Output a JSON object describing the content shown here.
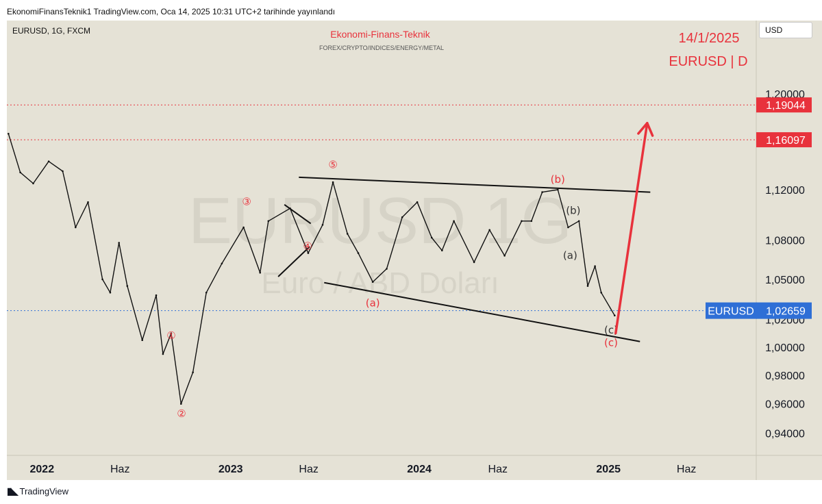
{
  "header": {
    "publish_line": "EkonomiFinansTeknik1 TradingView.com, Oca 14, 2025 10:31 UTC+2 tarihinde yayınlandı"
  },
  "chart_info": {
    "symbol_line": "EURUSD, 1G, FXCM",
    "brand_title": "Ekonomi-Finans-Teknik",
    "brand_subtitle": "FOREX/CRYPTO/INDICES/ENERGY/METAL",
    "watermark_symbol": "EURUSD 1G",
    "watermark_name": "Euro / ABD Doları",
    "date_note": "14/1/2025",
    "pair_note": "EURUSD | D",
    "currency_button": "USD"
  },
  "colors": {
    "background": "#e5e2d6",
    "candles": "#111111",
    "accent_red": "#e8323c",
    "last_price_blue": "#2f6fd6",
    "trendline": "#111111",
    "grid_axis_bg": "#e5e2d6"
  },
  "footer": {
    "logo_icon": "tradingview-logo-icon",
    "logo_text": "TradingView"
  },
  "chart_data": {
    "type": "line",
    "title": "",
    "subtitle": "",
    "symbol": "EURUSD",
    "interval": "1G",
    "x_tick_labels": [
      "2022",
      "Haz",
      "2023",
      "Haz",
      "2024",
      "Haz",
      "2025",
      "Haz"
    ],
    "y_tick_labels": [
      "1,20000",
      "1,12000",
      "1,08000",
      "1,05000",
      "1,02000",
      "1,00000",
      "0,98000",
      "0,96000",
      "0,94000"
    ],
    "y_ticks": [
      1.2,
      1.12,
      1.08,
      1.05,
      1.02,
      1.0,
      0.98,
      0.96,
      0.94
    ],
    "y_scale": "log",
    "ylim": [
      0.925,
      1.265
    ],
    "xlim": [
      "2021-10-25",
      "2025-10-14"
    ],
    "grid": false,
    "series": [
      {
        "x": [
          "2021-10-28",
          "2021-11-20",
          "2021-12-15",
          "2022-01-14",
          "2022-02-10",
          "2022-03-07",
          "2022-03-31",
          "2022-04-28",
          "2022-05-13",
          "2022-05-30",
          "2022-06-15",
          "2022-07-14",
          "2022-08-10",
          "2022-08-23",
          "2022-09-08",
          "2022-09-27",
          "2022-10-20",
          "2022-11-15",
          "2022-12-15",
          "2023-01-26",
          "2023-02-27",
          "2023-03-15",
          "2023-04-26",
          "2023-05-31",
          "2023-06-28",
          "2023-07-18",
          "2023-08-15",
          "2023-09-05",
          "2023-10-03",
          "2023-10-30",
          "2023-11-29",
          "2023-12-28",
          "2024-01-25",
          "2024-02-14",
          "2024-03-08",
          "2024-04-16",
          "2024-05-16",
          "2024-06-14",
          "2024-07-17",
          "2024-08-05",
          "2024-08-26",
          "2024-09-25",
          "2024-10-15",
          "2024-11-05",
          "2024-11-22",
          "2024-12-06",
          "2024-12-18",
          "2025-01-13"
        ],
        "values": [
          1.166,
          1.134,
          1.125,
          1.143,
          1.135,
          1.09,
          1.11,
          1.05,
          1.04,
          1.078,
          1.045,
          1.005,
          1.038,
          0.995,
          1.01,
          0.96,
          0.982,
          1.04,
          1.062,
          1.09,
          1.055,
          1.095,
          1.105,
          1.07,
          1.092,
          1.126,
          1.085,
          1.07,
          1.048,
          1.058,
          1.098,
          1.11,
          1.082,
          1.072,
          1.095,
          1.063,
          1.088,
          1.068,
          1.095,
          1.095,
          1.118,
          1.12,
          1.09,
          1.095,
          1.045,
          1.06,
          1.04,
          1.023
        ]
      }
    ],
    "price_lines": [
      {
        "label": "1,19044",
        "value": 1.19044,
        "color": "#e8323c"
      },
      {
        "label": "1,16097",
        "value": 1.16097,
        "color": "#e8323c"
      }
    ],
    "last_price": {
      "symbol": "EURUSD",
      "label": "1,02659",
      "value": 1.02659,
      "color": "#2f6fd6"
    },
    "wave_labels": [
      {
        "text": "①",
        "date": "2022-09-08",
        "price": 1.008,
        "color": "#e8323c"
      },
      {
        "text": "②",
        "date": "2022-09-28",
        "price": 0.953,
        "color": "#e8323c"
      },
      {
        "text": "③",
        "date": "2023-02-01",
        "price": 1.11,
        "color": "#e8323c"
      },
      {
        "text": "④",
        "date": "2023-05-30",
        "price": 1.075,
        "color": "#e8323c"
      },
      {
        "text": "⑤",
        "date": "2023-07-18",
        "price": 1.14,
        "color": "#e8323c"
      },
      {
        "text": "(a)",
        "date": "2023-10-03",
        "price": 1.032,
        "color": "#e8323c"
      },
      {
        "text": "(b)",
        "date": "2024-09-25",
        "price": 1.128,
        "color": "#e8323c"
      },
      {
        "text": "(b)",
        "date": "2024-10-25",
        "price": 1.103,
        "color": "#333333"
      },
      {
        "text": "(a)",
        "date": "2024-10-19",
        "price": 1.068,
        "color": "#333333"
      },
      {
        "text": "(c)",
        "date": "2025-01-06",
        "price": 1.012,
        "color": "#333333"
      },
      {
        "text": "(c)",
        "date": "2025-01-06",
        "price": 1.003,
        "color": "#e8323c"
      }
    ],
    "trendlines": [
      {
        "from": [
          "2023-05-13",
          1.13
        ],
        "to": [
          "2025-03-23",
          1.118
        ]
      },
      {
        "from": [
          "2023-07-01",
          1.0475
        ],
        "to": [
          "2025-03-03",
          1.004
        ]
      },
      {
        "from": [
          "2023-04-03",
          1.052
        ],
        "to": [
          "2023-06-03",
          1.075
        ]
      },
      {
        "from": [
          "2023-04-15",
          1.108
        ],
        "to": [
          "2023-06-05",
          1.093
        ]
      }
    ],
    "projection_arrow": {
      "from": [
        "2025-01-15",
        1.01
      ],
      "to": [
        "2025-03-17",
        1.175
      ],
      "color": "#e8323c"
    }
  }
}
